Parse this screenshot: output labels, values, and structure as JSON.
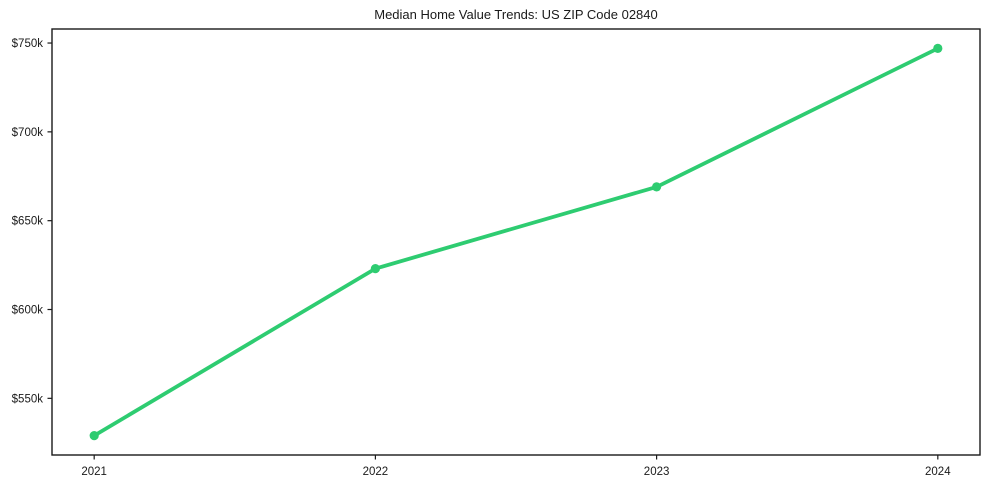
{
  "figure": {
    "background_color": "#ffffff"
  },
  "chart_data": {
    "type": "line",
    "title": "Median Home Value Trends: US ZIP Code 02840",
    "x": [
      2021,
      2022,
      2023,
      2024
    ],
    "series": [
      {
        "values": [
          529000,
          623000,
          669000,
          747000
        ],
        "color": "#2ecc71",
        "marker": "circle"
      }
    ],
    "xticks": [
      {
        "value": 2021,
        "label": "2021"
      },
      {
        "value": 2022,
        "label": "2022"
      },
      {
        "value": 2023,
        "label": "2023"
      },
      {
        "value": 2024,
        "label": "2024"
      }
    ],
    "yticks": [
      {
        "value": 550000,
        "label": "$550k"
      },
      {
        "value": 600000,
        "label": "$600k"
      },
      {
        "value": 650000,
        "label": "$650k"
      },
      {
        "value": 700000,
        "label": "$700k"
      },
      {
        "value": 750000,
        "label": "$750k"
      }
    ],
    "xlim": [
      2020.85,
      2024.15
    ],
    "ylim": [
      518100,
      757900
    ],
    "grid": false,
    "legend": null
  },
  "style": {
    "axis_color": "#1a1a1a",
    "tick_label_color": "#1a1a1a",
    "title_color": "#1a1a1a"
  }
}
